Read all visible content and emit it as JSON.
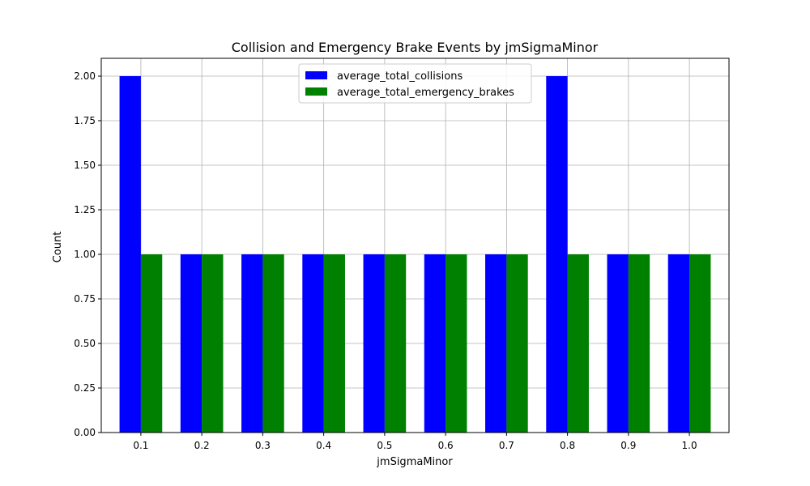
{
  "chart_data": {
    "type": "bar",
    "title": "Collision and Emergency Brake Events by jmSigmaMinor",
    "xlabel": "jmSigmaMinor",
    "ylabel": "Count",
    "categories": [
      "0.1",
      "0.2",
      "0.3",
      "0.4",
      "0.5",
      "0.6",
      "0.7",
      "0.8",
      "0.9",
      "1.0"
    ],
    "series": [
      {
        "name": "average_total_collisions",
        "color": "#0000ff",
        "values": [
          2,
          1,
          1,
          1,
          1,
          1,
          1,
          2,
          1,
          1
        ]
      },
      {
        "name": "average_total_emergency_brakes",
        "color": "#008000",
        "values": [
          1,
          1,
          1,
          1,
          1,
          1,
          1,
          1,
          1,
          1
        ]
      }
    ],
    "ylim": [
      0,
      2.1
    ],
    "yticks": [
      "0.00",
      "0.25",
      "0.50",
      "0.75",
      "1.00",
      "1.25",
      "1.50",
      "1.75",
      "2.00"
    ],
    "grid": true,
    "legend_position": "top-center"
  }
}
